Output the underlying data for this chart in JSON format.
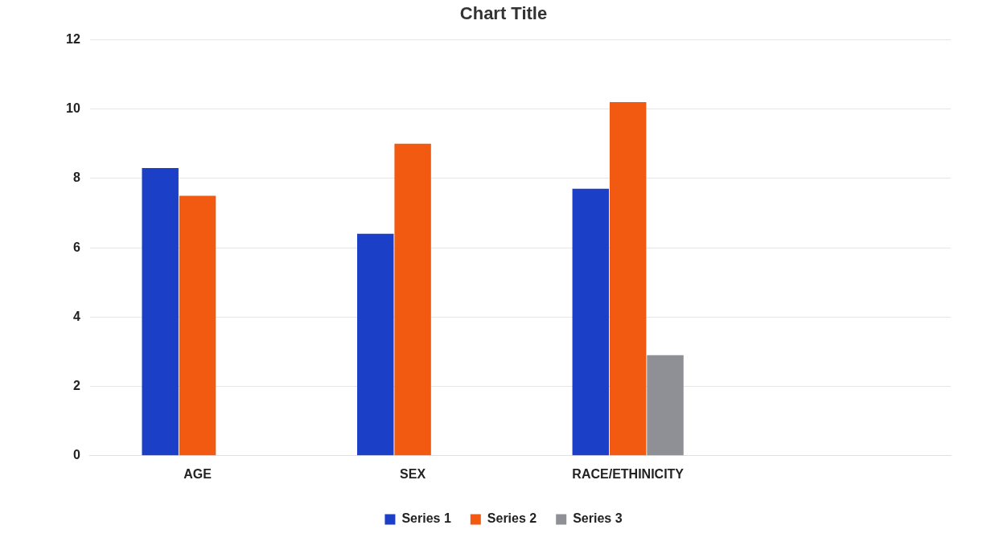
{
  "chart_data": {
    "type": "bar",
    "title": "Chart Title",
    "categories": [
      "AGE",
      "SEX",
      "RACE/ETHINICITY",
      null
    ],
    "series": [
      {
        "name": "Series 1",
        "color": "#1c3fc8",
        "values": [
          8.3,
          6.4,
          7.7,
          null
        ]
      },
      {
        "name": "Series 2",
        "color": "#f25a12",
        "values": [
          7.5,
          9.0,
          10.2,
          null
        ]
      },
      {
        "name": "Series 3",
        "color": "#8e9096",
        "values": [
          null,
          null,
          2.9,
          null
        ]
      }
    ],
    "ylim": [
      0,
      12
    ],
    "yticks": [
      0,
      2,
      4,
      6,
      8,
      10,
      12
    ],
    "grid": "y",
    "legend": "bottom"
  }
}
